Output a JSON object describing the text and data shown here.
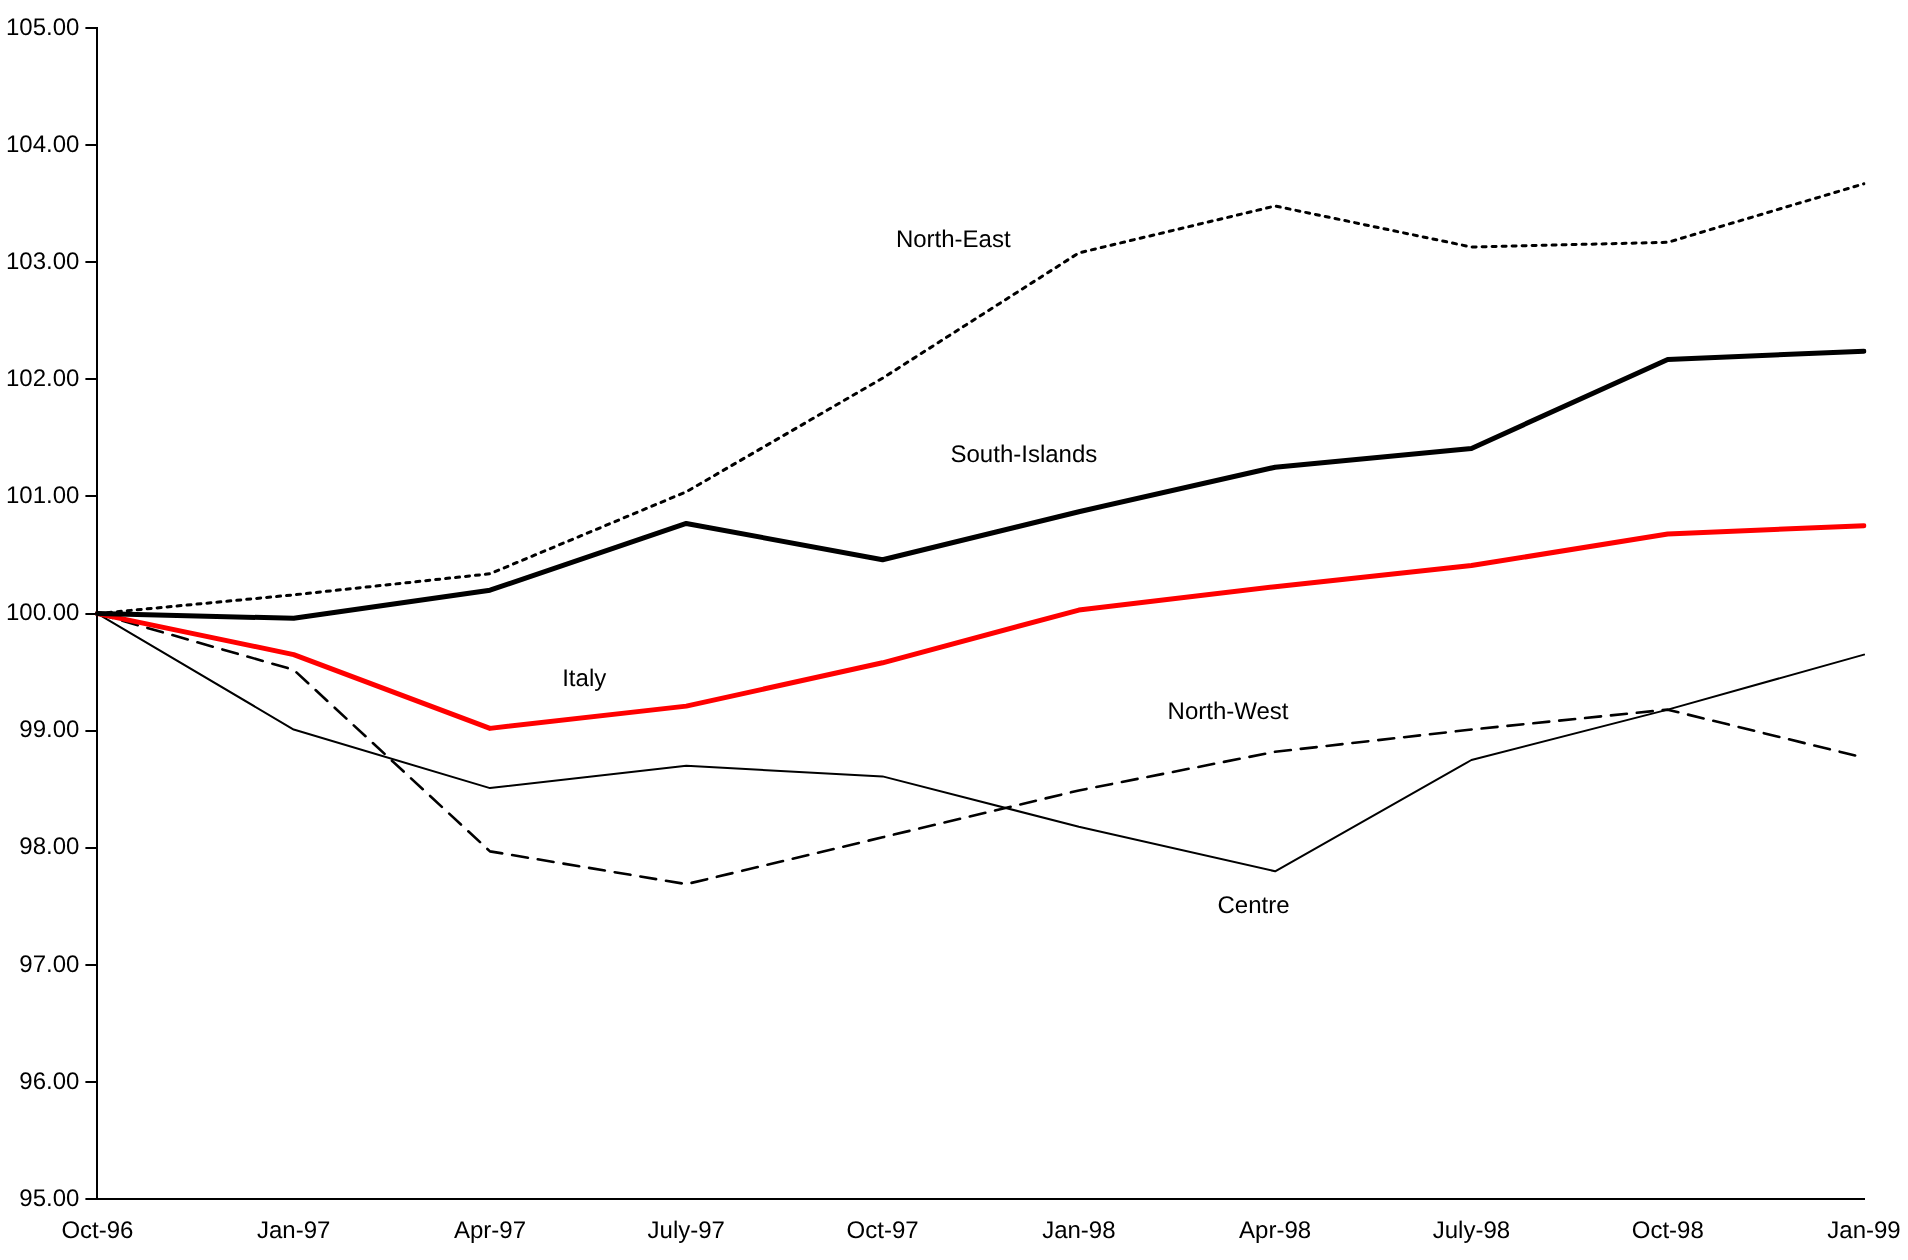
{
  "chart_data": {
    "type": "line",
    "categories": [
      "Oct-96",
      "Jan-97",
      "Apr-97",
      "July-97",
      "Oct-97",
      "Jan-98",
      "Apr-98",
      "July-98",
      "Oct-98",
      "Jan-99"
    ],
    "series": [
      {
        "name": "North-East",
        "color": "#000000",
        "line_style": "dotted",
        "values": [
          100.0,
          100.16,
          100.34,
          101.04,
          102.01,
          103.08,
          103.48,
          103.13,
          103.17,
          103.67
        ]
      },
      {
        "name": "South-Islands",
        "color": "#000000",
        "line_style": "solid",
        "values": [
          100.0,
          99.96,
          100.2,
          100.77,
          100.46,
          100.87,
          101.25,
          101.41,
          102.17,
          102.24
        ]
      },
      {
        "name": "Italy",
        "color": "#ff0000",
        "line_style": "solid",
        "values": [
          100.0,
          99.65,
          99.02,
          99.21,
          99.58,
          100.03,
          100.23,
          100.41,
          100.68,
          100.75
        ]
      },
      {
        "name": "North-West",
        "color": "#000000",
        "line_style": "dashed",
        "values": [
          100.0,
          99.52,
          97.97,
          97.69,
          98.09,
          98.49,
          98.82,
          99.01,
          99.18,
          98.77
        ]
      },
      {
        "name": "Centre",
        "color": "#000000",
        "line_style": "solid",
        "values": [
          100.0,
          99.01,
          98.51,
          98.7,
          98.61,
          98.18,
          97.8,
          98.75,
          99.18,
          99.65
        ]
      }
    ],
    "ylim": [
      95,
      105
    ],
    "yticks": [
      {
        "value": 95,
        "label": "95.00"
      },
      {
        "value": 96,
        "label": "96.00"
      },
      {
        "value": 97,
        "label": "97.00"
      },
      {
        "value": 98,
        "label": "98.00"
      },
      {
        "value": 99,
        "label": "99.00"
      },
      {
        "value": 100,
        "label": "100.00"
      },
      {
        "value": 101,
        "label": "101.00"
      },
      {
        "value": 102,
        "label": "102.00"
      },
      {
        "value": 103,
        "label": "103.00"
      },
      {
        "value": 104,
        "label": "104.00"
      },
      {
        "value": 105,
        "label": "105.00"
      }
    ],
    "grid": false,
    "legend": false,
    "marker": "none"
  }
}
